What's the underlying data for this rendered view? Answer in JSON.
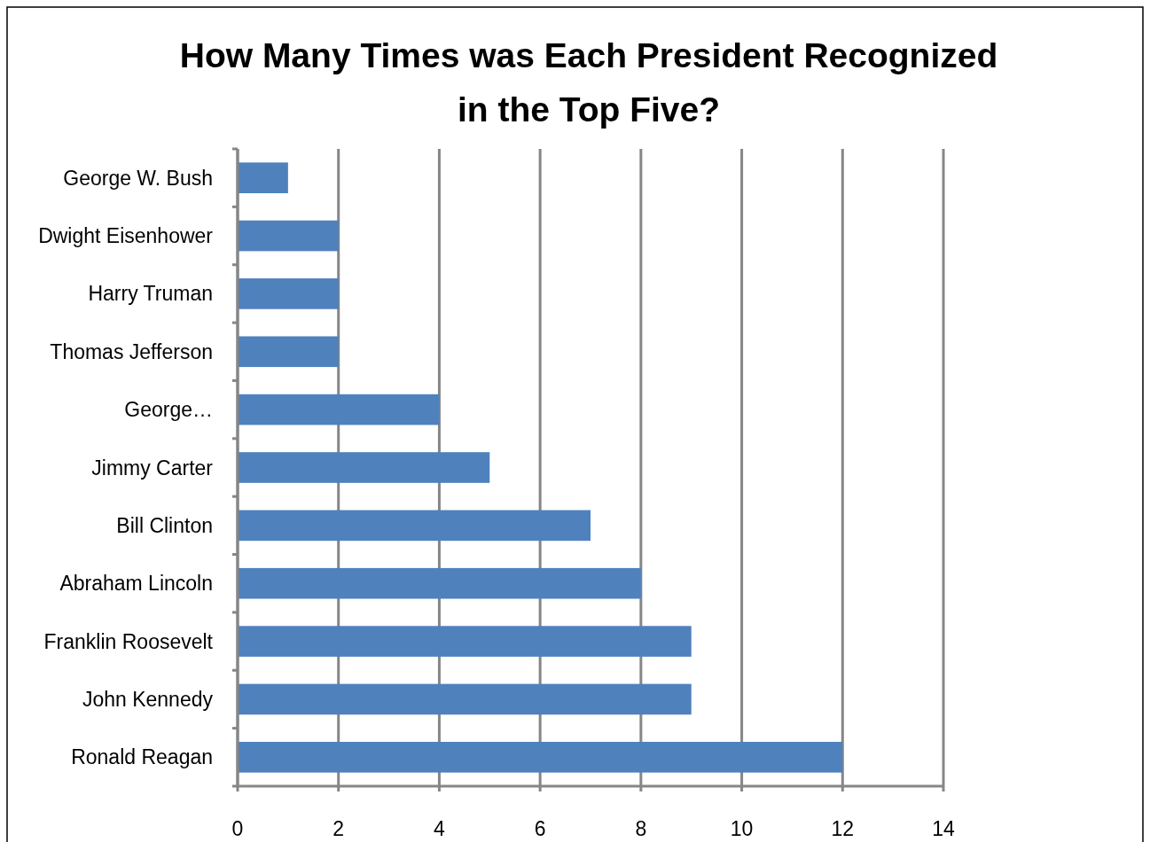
{
  "chart_data": {
    "type": "bar",
    "orientation": "horizontal",
    "title": "How Many Times was Each President Recognized in the Top Five?",
    "categories": [
      "George W. Bush",
      "Dwight Eisenhower",
      "Harry Truman",
      "Thomas Jefferson",
      "George…",
      "Jimmy Carter",
      "Bill Clinton",
      "Abraham Lincoln",
      "Franklin Roosevelt",
      "John Kennedy",
      "Ronald Reagan"
    ],
    "values": [
      1,
      2,
      2,
      2,
      4,
      5,
      7,
      8,
      9,
      9,
      12
    ],
    "color": "#4f81bd",
    "xlim": [
      0,
      14
    ],
    "xticks": [
      0,
      2,
      4,
      6,
      8,
      10,
      12,
      14
    ],
    "grid": "x"
  }
}
